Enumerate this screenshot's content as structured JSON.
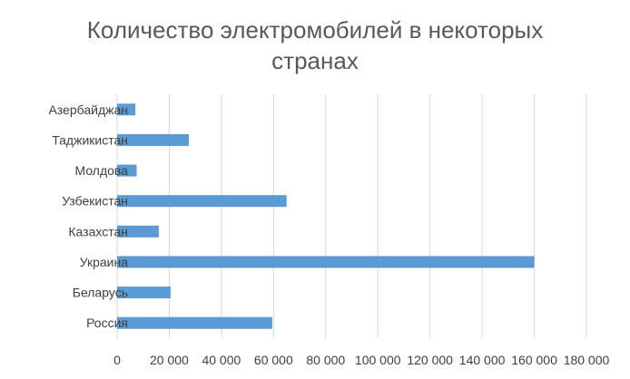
{
  "chart_data": {
    "type": "bar",
    "orientation": "horizontal",
    "title_lines": [
      "Количество электромобилей в некоторых",
      "странах"
    ],
    "categories": [
      "Азербайджан",
      "Таджикистан",
      "Молдова",
      "Узбекистан",
      "Казахстан",
      "Украина",
      "Беларусь",
      "Россия"
    ],
    "series": [
      {
        "values": [
          7000,
          27500,
          7500,
          65000,
          16000,
          160000,
          20500,
          59500
        ]
      }
    ],
    "xlim": [
      0,
      180000
    ],
    "xticks": [
      0,
      20000,
      40000,
      60000,
      80000,
      100000,
      120000,
      140000,
      160000,
      180000
    ],
    "xtick_labels": [
      "0",
      "20 000",
      "40 000",
      "60 000",
      "80 000",
      "100 000",
      "120 000",
      "140 000",
      "160 000",
      "180 000"
    ],
    "grid": true,
    "bar_color": "#5b9bd5",
    "grid_color": "#d9d9d9",
    "xlabel": "",
    "ylabel": ""
  }
}
